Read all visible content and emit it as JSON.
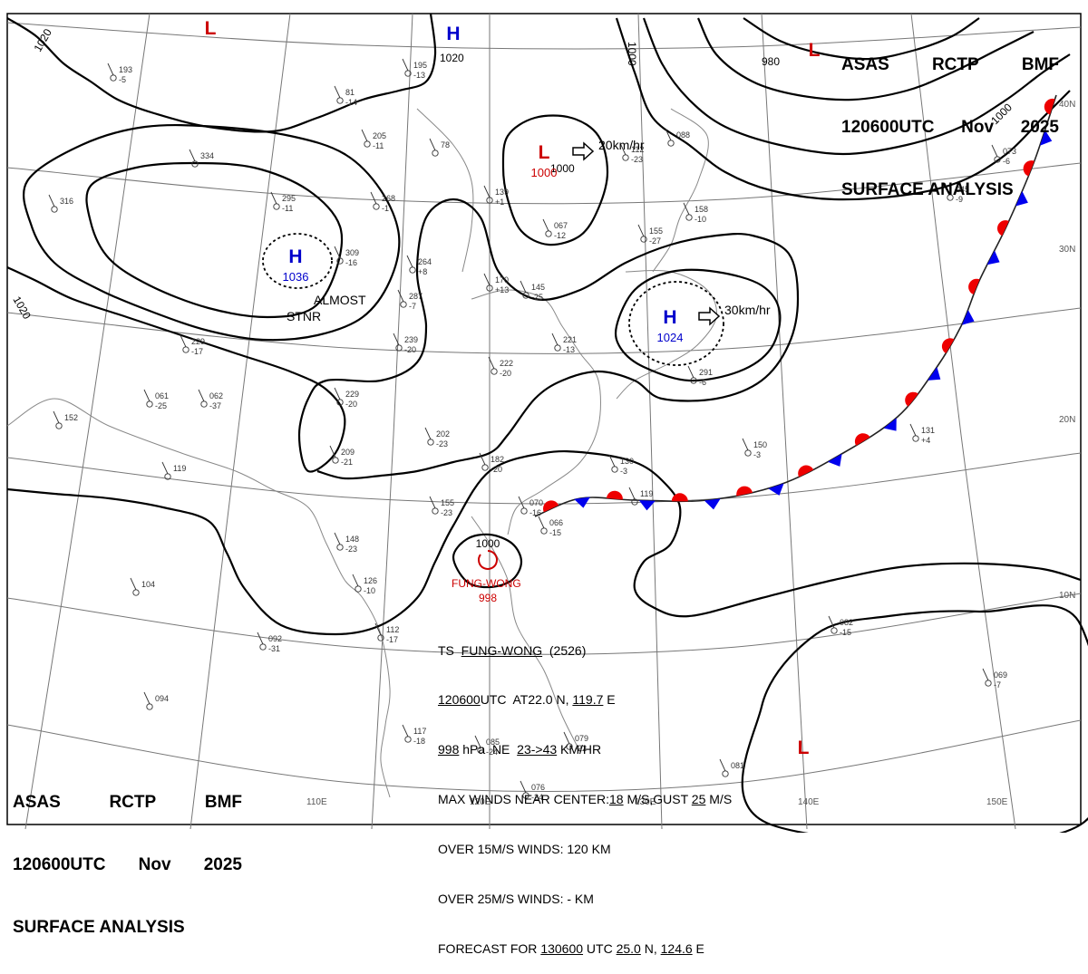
{
  "header": {
    "agency": "ASAS",
    "center": "RCTP",
    "office": "BMF",
    "time": "120600UTC",
    "month": "Nov",
    "year": "2025",
    "title": "SURFACE ANALYSIS"
  },
  "colors": {
    "high": "#0000cc",
    "low": "#cc0000",
    "cold_front": "#0000ee",
    "warm_front": "#ee0000",
    "isobar": "#000000",
    "grid": "#777777"
  },
  "lat_labels": [
    "40N",
    "30N",
    "20N",
    "10N"
  ],
  "lon_labels": [
    "110E",
    "120E",
    "130E",
    "140E",
    "150E"
  ],
  "isobar_labels": [
    "1020",
    "1020",
    "1020",
    "1000",
    "1000",
    "980",
    "1000"
  ],
  "pressure_systems": [
    {
      "type": "L",
      "value": ""
    },
    {
      "type": "H",
      "value": ""
    },
    {
      "type": "L",
      "value": "1000",
      "motion": "20km/hr"
    },
    {
      "type": "L",
      "value": ""
    },
    {
      "type": "H",
      "value": "1036",
      "note": "ALMOST STNR"
    },
    {
      "type": "H",
      "value": "1024",
      "motion": "30km/hr"
    },
    {
      "type": "L",
      "value": ""
    }
  ],
  "storm": {
    "name": "FUNG-WONG",
    "pressure": "998"
  },
  "bulletin": {
    "line1_prefix": "TS",
    "line1_name": "FUNG-WONG",
    "line1_id": "(2526)",
    "line2_time": "120600",
    "line2_mid": "UTC  AT22.0 N, ",
    "line2_lon": "119.7",
    "line2_end": " E",
    "line3_pres": "998",
    "line3_mid": " hPa  NE  ",
    "line3_speed": "23->43",
    "line3_end": " KM/HR",
    "line4_pre": "MAX WINDS NEAR CENTER:",
    "line4_wind": "18",
    "line4_mid": " M/S,GUST ",
    "line4_gust": "25",
    "line4_end": " M/S",
    "line5": "OVER 15M/S WINDS: 120 KM",
    "line6": "OVER 25M/S WINDS: - KM",
    "line7_pre": "FORECAST FOR ",
    "line7_time": "130600",
    "line7_mid": " UTC ",
    "line7_lat": "25.0",
    "line7_n": " N, ",
    "line7_lon": "124.6",
    "line7_end": " E"
  },
  "stations": [
    {
      "t": "193",
      "v": "-5"
    },
    {
      "t": "81",
      "v": "-14"
    },
    {
      "t": "195",
      "v": "-13"
    },
    {
      "t": "205",
      "v": "-11"
    },
    {
      "t": "78",
      "v": ""
    },
    {
      "t": "334",
      "v": ""
    },
    {
      "t": "295",
      "v": "-11"
    },
    {
      "t": "268",
      "v": "-1"
    },
    {
      "t": "139",
      "v": "+1"
    },
    {
      "t": "112",
      "v": "-23"
    },
    {
      "t": "088",
      "v": ""
    },
    {
      "t": "316",
      "v": ""
    },
    {
      "t": "309",
      "v": "-16"
    },
    {
      "t": "264",
      "v": "+8"
    },
    {
      "t": "067",
      "v": "-12"
    },
    {
      "t": "155",
      "v": "-27"
    },
    {
      "t": "158",
      "v": "-10"
    },
    {
      "t": "045",
      "v": "-9"
    },
    {
      "t": "073",
      "v": "-6"
    },
    {
      "t": "287",
      "v": "-7"
    },
    {
      "t": "170",
      "v": "+13"
    },
    {
      "t": "145",
      "v": "-25"
    },
    {
      "t": "229",
      "v": "-17"
    },
    {
      "t": "239",
      "v": "-20"
    },
    {
      "t": "221",
      "v": "-13"
    },
    {
      "t": "222",
      "v": "-20"
    },
    {
      "t": "061",
      "v": "-25"
    },
    {
      "t": "062",
      "v": "-37"
    },
    {
      "t": "229",
      "v": "-20"
    },
    {
      "t": "152",
      "v": ""
    },
    {
      "t": "291",
      "v": "-6"
    },
    {
      "t": "131",
      "v": "+4"
    },
    {
      "t": "150",
      "v": "-3"
    },
    {
      "t": "119",
      "v": ""
    },
    {
      "t": "209",
      "v": "-21"
    },
    {
      "t": "202",
      "v": "-23"
    },
    {
      "t": "182",
      "v": "-20"
    },
    {
      "t": "130",
      "v": "-3"
    },
    {
      "t": "155",
      "v": "-23"
    },
    {
      "t": "070",
      "v": "-16"
    },
    {
      "t": "066",
      "v": "-15"
    },
    {
      "t": "119",
      "v": ""
    },
    {
      "t": "148",
      "v": "-23"
    },
    {
      "t": "126",
      "v": "-10"
    },
    {
      "t": "104",
      "v": ""
    },
    {
      "t": "092",
      "v": "-31"
    },
    {
      "t": "112",
      "v": "-17"
    },
    {
      "t": "082",
      "v": "-15"
    },
    {
      "t": "069",
      "v": "-7"
    },
    {
      "t": "094",
      "v": ""
    },
    {
      "t": "117",
      "v": "-18"
    },
    {
      "t": "085",
      "v": "-24"
    },
    {
      "t": "079",
      "v": "-22"
    },
    {
      "t": "081",
      "v": ""
    },
    {
      "t": "076",
      "v": "-24"
    }
  ]
}
